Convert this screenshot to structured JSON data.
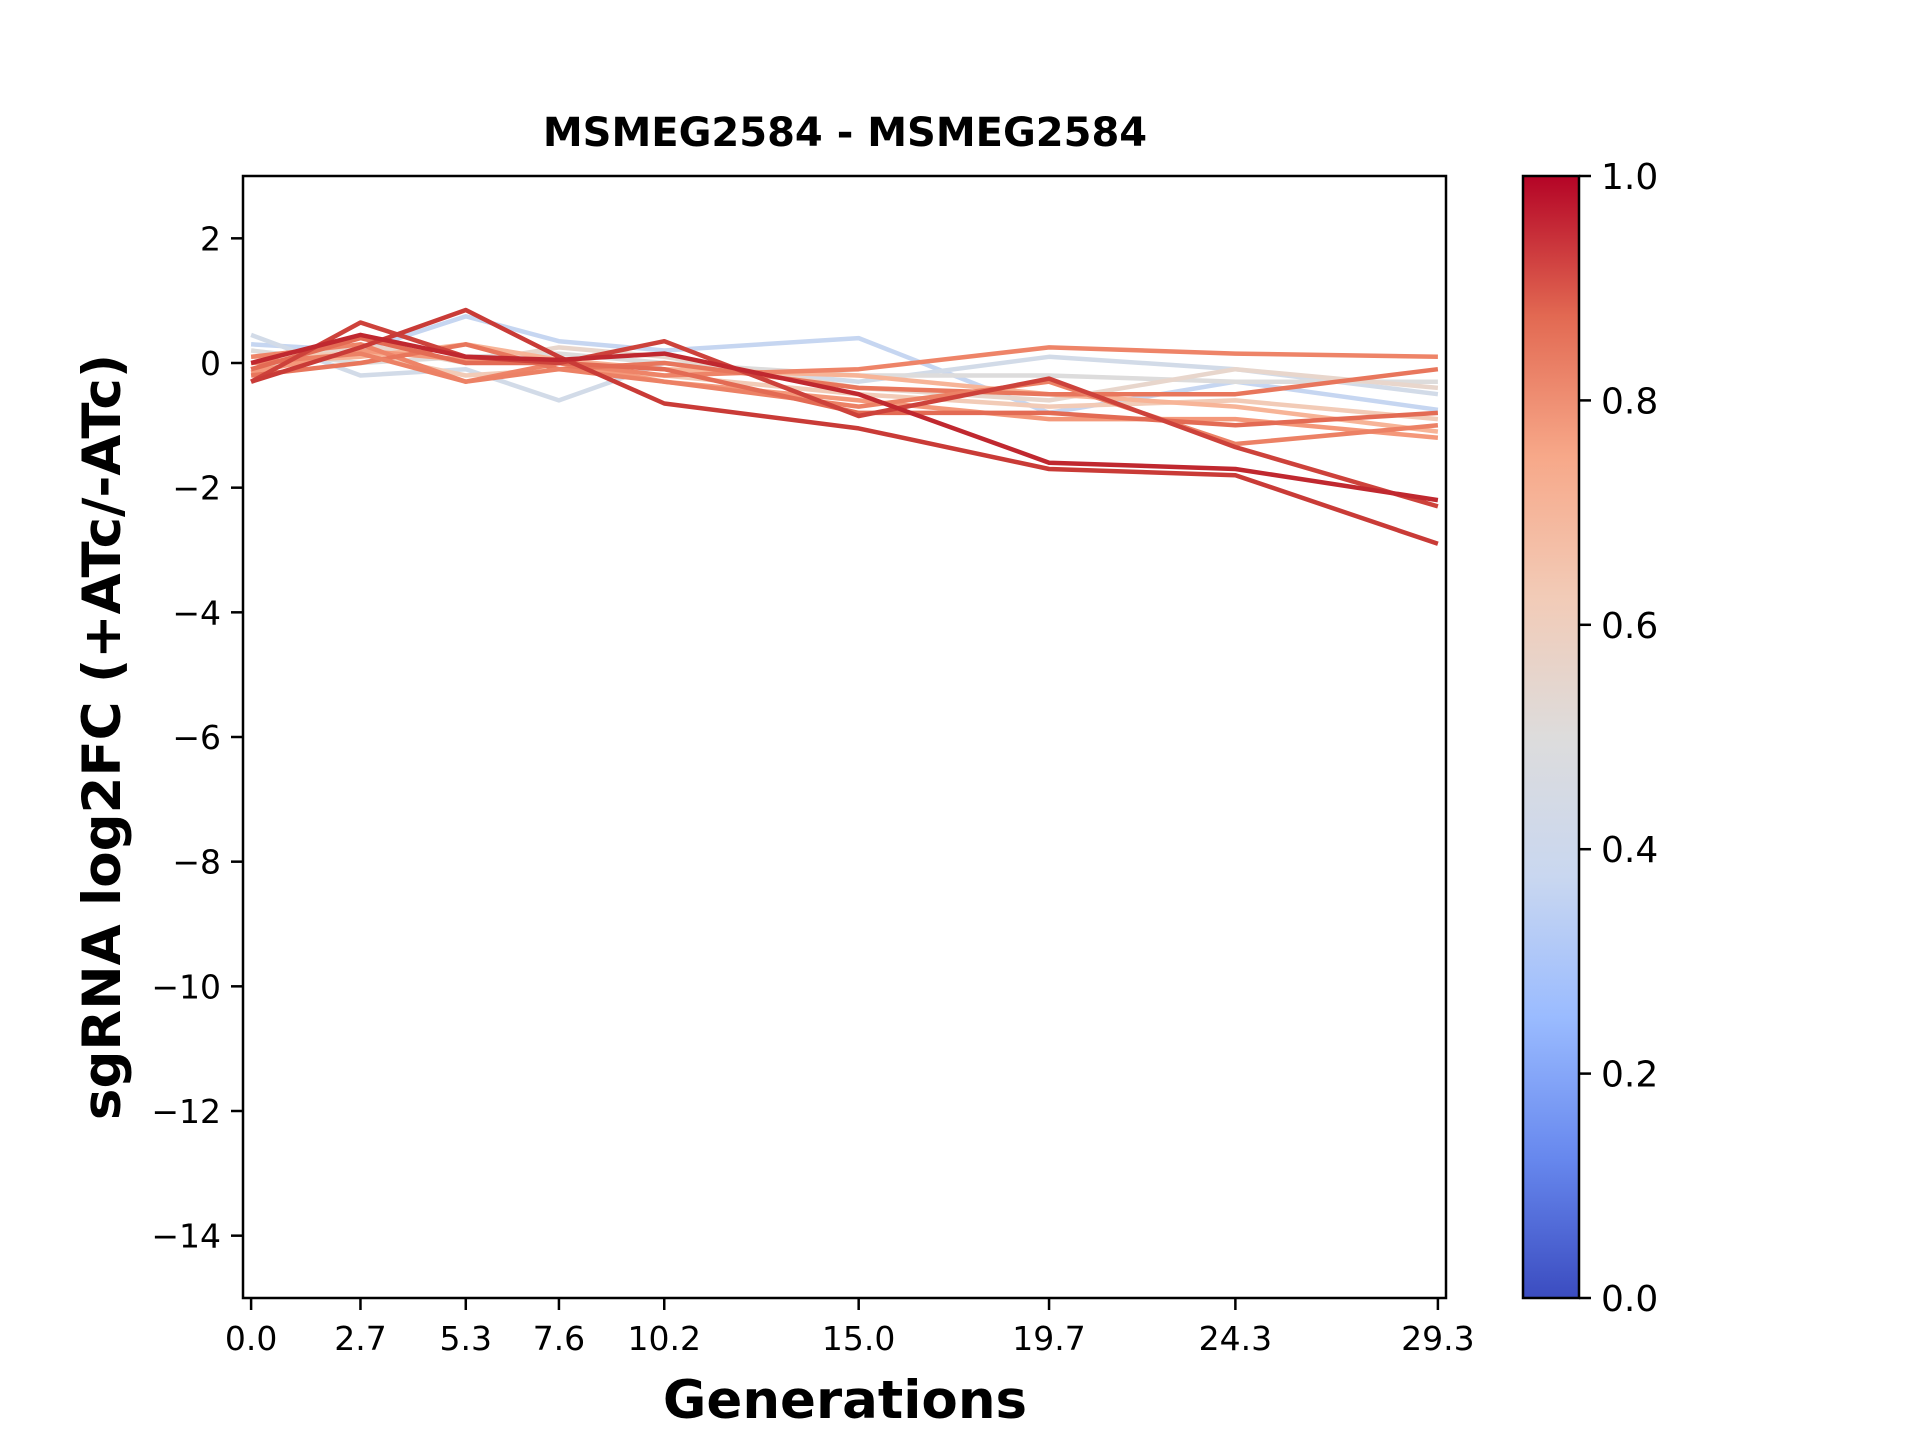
{
  "chart_data": {
    "type": "line",
    "title": "MSMEG2584 - MSMEG2584",
    "xlabel": "Generations",
    "ylabel": "sgRNA log2FC (+ATc/-ATc)",
    "x": [
      0.0,
      2.7,
      5.3,
      7.6,
      10.2,
      15.0,
      19.7,
      24.3,
      29.3
    ],
    "x_tick_labels": [
      "0.0",
      "2.7",
      "5.3",
      "7.6",
      "10.2",
      "15.0",
      "19.7",
      "24.3",
      "29.3"
    ],
    "xlim": [
      -0.2,
      29.5
    ],
    "ylim": [
      -15,
      3
    ],
    "y_ticks": [
      2,
      0,
      -2,
      -4,
      -6,
      -8,
      -10,
      -12,
      -14
    ],
    "y_tick_labels": [
      "2",
      "0",
      "−2",
      "−4",
      "−6",
      "−8",
      "−10",
      "−12",
      "−14"
    ],
    "colormap": "coolwarm",
    "colorbar": {
      "ticks": [
        0.0,
        0.2,
        0.4,
        0.6,
        0.8,
        1.0
      ],
      "tick_labels": [
        "0.0",
        "0.2",
        "0.4",
        "0.6",
        "0.8",
        "1.0"
      ],
      "stops": [
        "#3b4cc0",
        "#6788ee",
        "#9abbff",
        "#c9d7f0",
        "#dddcdc",
        "#f2cbb7",
        "#f7a889",
        "#e26952",
        "#b40426"
      ]
    },
    "grid": false,
    "series": [
      {
        "score": 0.38,
        "color": "#c6d6f1",
        "values": [
          0.3,
          0.2,
          0.75,
          0.35,
          0.2,
          0.4,
          -0.8,
          -0.3,
          -0.75
        ]
      },
      {
        "score": 0.45,
        "color": "#d2dbe8",
        "values": [
          0.45,
          -0.2,
          -0.1,
          -0.6,
          0.0,
          -0.3,
          0.1,
          -0.1,
          -0.5
        ]
      },
      {
        "score": 0.5,
        "color": "#dddcdc",
        "values": [
          0.2,
          0.0,
          0.1,
          0.15,
          0.0,
          -0.2,
          -0.2,
          -0.3,
          -0.3
        ]
      },
      {
        "score": 0.55,
        "color": "#e8d6cc",
        "values": [
          -0.1,
          0.3,
          0.0,
          0.25,
          0.1,
          -0.4,
          -0.6,
          -0.1,
          -0.4
        ]
      },
      {
        "score": 0.62,
        "color": "#f2cbb7",
        "values": [
          0.1,
          0.15,
          -0.2,
          -0.1,
          -0.2,
          -0.5,
          -0.7,
          -0.6,
          -0.9
        ]
      },
      {
        "score": 0.7,
        "color": "#f7b497",
        "values": [
          0.0,
          0.1,
          0.3,
          0.05,
          -0.1,
          -0.2,
          -0.5,
          -0.7,
          -1.1
        ]
      },
      {
        "score": 0.75,
        "color": "#f4987a",
        "values": [
          -0.15,
          0.2,
          0.05,
          0.0,
          -0.3,
          -0.6,
          -0.9,
          -0.9,
          -1.2
        ]
      },
      {
        "score": 0.78,
        "color": "#ee8468",
        "values": [
          0.1,
          0.3,
          -0.3,
          0.0,
          -0.2,
          -0.1,
          0.25,
          0.15,
          0.1
        ]
      },
      {
        "score": 0.8,
        "color": "#e8765c",
        "values": [
          -0.2,
          0.0,
          0.3,
          -0.1,
          0.0,
          -0.4,
          -0.5,
          -0.5,
          -0.1
        ]
      },
      {
        "score": 0.82,
        "color": "#ec8165",
        "values": [
          0.0,
          0.15,
          -0.3,
          -0.1,
          -0.3,
          -0.7,
          -0.3,
          -1.3,
          -1.0
        ]
      },
      {
        "score": 0.85,
        "color": "#e36b54",
        "values": [
          -0.1,
          0.4,
          0.0,
          0.0,
          -0.1,
          -0.8,
          -0.8,
          -1.0,
          -0.8
        ]
      },
      {
        "score": 0.92,
        "color": "#cd423b",
        "values": [
          -0.3,
          0.65,
          0.1,
          0.0,
          0.35,
          -0.85,
          -0.25,
          -1.35,
          -2.3
        ]
      },
      {
        "score": 0.95,
        "color": "#c0282f",
        "values": [
          0.0,
          0.45,
          0.1,
          0.05,
          0.15,
          -0.5,
          -1.6,
          -1.7,
          -2.2
        ]
      },
      {
        "score": 0.93,
        "color": "#c93b37",
        "values": [
          -0.3,
          0.25,
          0.85,
          0.1,
          -0.65,
          -1.05,
          -1.7,
          -1.8,
          -2.9
        ]
      }
    ]
  }
}
